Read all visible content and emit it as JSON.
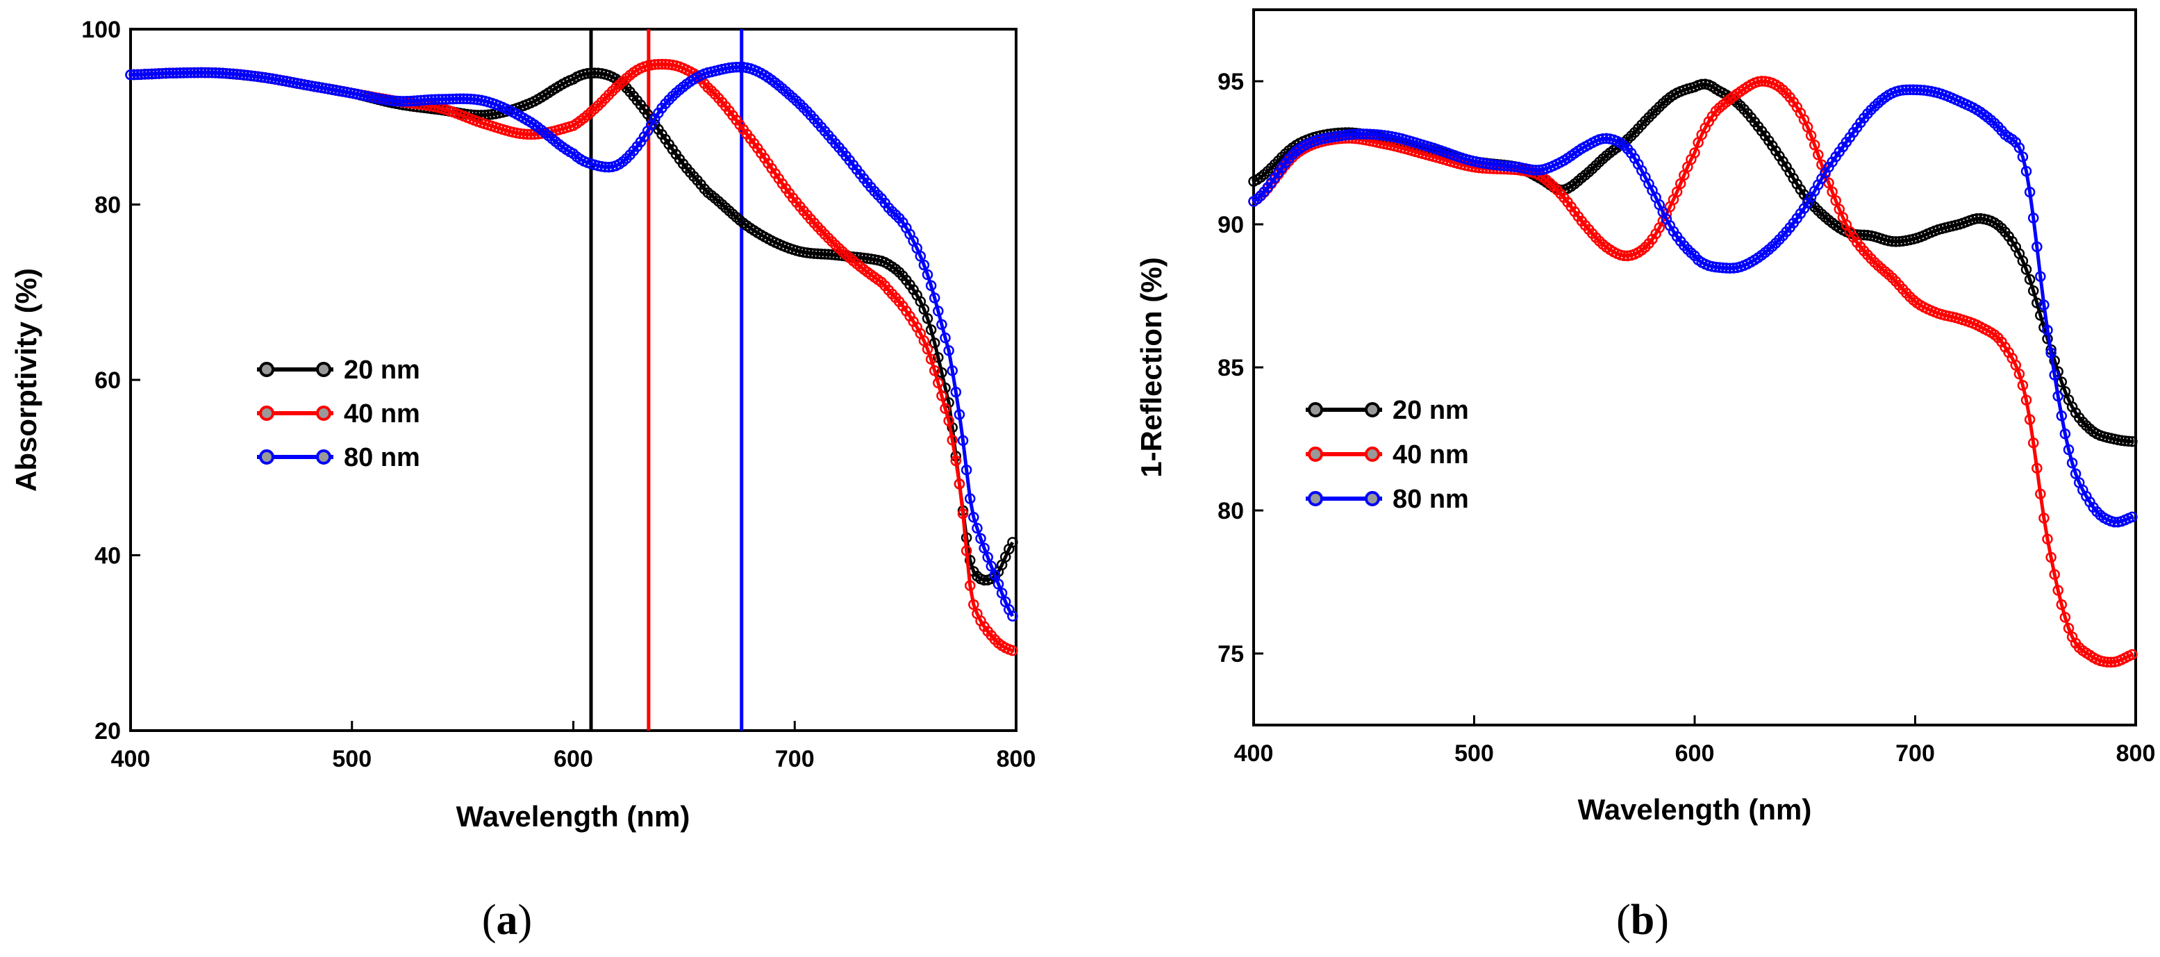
{
  "chart_data": [
    {
      "type": "line",
      "panel_label": "a",
      "xlabel": "Wavelength (nm)",
      "ylabel": "Absorptivity (%)",
      "xlim": [
        400,
        800
      ],
      "ylim": [
        20,
        100
      ],
      "xticks": [
        400,
        500,
        600,
        700,
        800
      ],
      "yticks": [
        20,
        40,
        60,
        80,
        100
      ],
      "legend_position": "center-left",
      "vertical_lines": [
        {
          "x": 608,
          "color": "#000000"
        },
        {
          "x": 634,
          "color": "#ff0000"
        },
        {
          "x": 676,
          "color": "#0000ff"
        }
      ],
      "x": [
        400,
        420,
        440,
        460,
        480,
        500,
        520,
        540,
        560,
        580,
        600,
        610,
        620,
        630,
        640,
        650,
        660,
        680,
        700,
        720,
        740,
        750,
        760,
        770,
        775,
        780,
        790,
        800
      ],
      "series": [
        {
          "name": "20 nm",
          "color": "#000000",
          "values": [
            94.8,
            95.0,
            95.0,
            94.5,
            93.6,
            92.7,
            91.5,
            90.8,
            90.2,
            91.5,
            94.3,
            95.0,
            94.2,
            91.5,
            88.0,
            84.5,
            81.5,
            77.3,
            74.8,
            74.2,
            73.5,
            71.5,
            67.0,
            57.0,
            47.0,
            38.5,
            37.5,
            42.0
          ]
        },
        {
          "name": "40 nm",
          "color": "#ff0000",
          "values": [
            94.8,
            95.0,
            95.0,
            94.5,
            93.6,
            92.7,
            91.8,
            91.0,
            89.2,
            88.0,
            89.0,
            91.0,
            93.5,
            95.5,
            96.0,
            95.5,
            93.5,
            87.5,
            80.5,
            75.0,
            71.0,
            68.0,
            63.5,
            55.0,
            47.0,
            35.0,
            30.5,
            29.0
          ]
        },
        {
          "name": "80 nm",
          "color": "#0000ff",
          "values": [
            94.8,
            95.0,
            95.0,
            94.5,
            93.6,
            92.7,
            91.8,
            92.0,
            91.8,
            89.5,
            85.8,
            84.5,
            84.5,
            87.0,
            91.0,
            93.5,
            95.0,
            95.5,
            92.0,
            86.5,
            80.5,
            77.5,
            72.0,
            63.0,
            55.0,
            45.0,
            38.0,
            32.5
          ]
        }
      ]
    },
    {
      "type": "line",
      "panel_label": "b",
      "xlabel": "Wavelength (nm)",
      "ylabel": "1-Reflection (%)",
      "xlim": [
        400,
        800
      ],
      "ylim": [
        72.5,
        97.5
      ],
      "xticks": [
        400,
        500,
        600,
        700,
        800
      ],
      "yticks": [
        75,
        80,
        85,
        90,
        95
      ],
      "legend_position": "center-left",
      "x": [
        400,
        420,
        440,
        460,
        480,
        500,
        520,
        530,
        540,
        550,
        560,
        570,
        580,
        590,
        600,
        605,
        610,
        620,
        630,
        640,
        650,
        660,
        670,
        680,
        690,
        700,
        710,
        720,
        730,
        740,
        750,
        760,
        770,
        780,
        790,
        800
      ],
      "series": [
        {
          "name": "20 nm",
          "color": "#000000",
          "values": [
            91.5,
            92.8,
            93.2,
            93.0,
            92.6,
            92.2,
            92.0,
            91.6,
            91.2,
            91.7,
            92.4,
            93.0,
            93.8,
            94.5,
            94.8,
            94.9,
            94.7,
            94.2,
            93.3,
            92.2,
            91.0,
            90.2,
            89.7,
            89.6,
            89.4,
            89.5,
            89.8,
            90.0,
            90.2,
            89.8,
            88.5,
            86.0,
            83.8,
            82.8,
            82.5,
            82.4
          ]
        },
        {
          "name": "40 nm",
          "color": "#ff0000",
          "values": [
            90.8,
            92.5,
            93.0,
            92.8,
            92.4,
            92.0,
            91.9,
            91.7,
            91.0,
            90.0,
            89.2,
            88.9,
            89.4,
            90.8,
            92.5,
            93.4,
            94.0,
            94.6,
            95.0,
            94.7,
            93.6,
            91.6,
            89.8,
            88.8,
            88.1,
            87.3,
            86.9,
            86.7,
            86.4,
            85.8,
            84.0,
            79.0,
            75.8,
            74.9,
            74.7,
            75.0
          ]
        },
        {
          "name": "80 nm",
          "color": "#0000ff",
          "values": [
            90.8,
            92.6,
            93.1,
            93.1,
            92.7,
            92.2,
            92.0,
            91.9,
            92.2,
            92.7,
            93.0,
            92.6,
            91.3,
            89.8,
            88.9,
            88.6,
            88.5,
            88.5,
            88.9,
            89.6,
            90.6,
            91.9,
            93.0,
            94.0,
            94.6,
            94.7,
            94.6,
            94.3,
            93.9,
            93.2,
            92.0,
            86.3,
            82.0,
            80.2,
            79.6,
            79.8
          ]
        }
      ]
    }
  ]
}
